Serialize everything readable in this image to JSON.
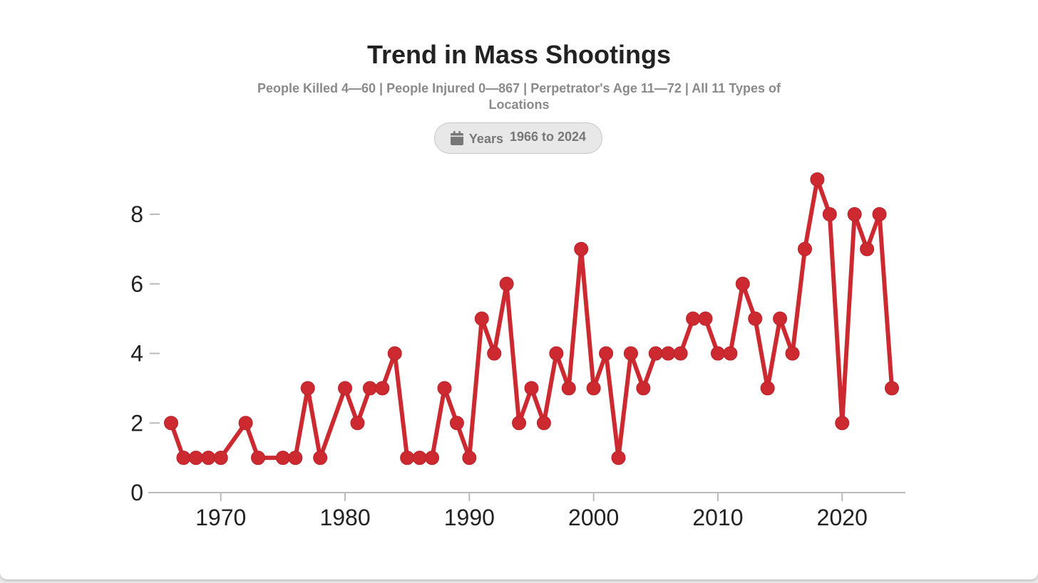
{
  "header": {
    "title": "Trend in Mass Shootings",
    "subtitle": "People Killed 4—60 | People Injured 0—867 | Perpetrator's Age 11—72 | All 11 Types of Locations"
  },
  "filter": {
    "icon": "calendar-icon",
    "label": "Years",
    "value": "1966 to 2024"
  },
  "colors": {
    "series": "#cc2a30",
    "axis": "#bbbbbb",
    "text": "#222222"
  },
  "chart_data": {
    "type": "line",
    "title": "Trend in Mass Shootings",
    "xlabel": "",
    "ylabel": "",
    "xlim": [
      1964,
      2025
    ],
    "ylim": [
      0,
      9
    ],
    "xticks": [
      1970,
      1980,
      1990,
      2000,
      2010,
      2020
    ],
    "yticks": [
      0,
      2,
      4,
      6,
      8
    ],
    "grid": false,
    "series": [
      {
        "name": "Mass shootings",
        "points": [
          [
            1966,
            2
          ],
          [
            1967,
            1
          ],
          [
            1968,
            1
          ],
          [
            1969,
            1
          ],
          [
            1970,
            1
          ],
          [
            1972,
            2
          ],
          [
            1973,
            1
          ],
          [
            1975,
            1
          ],
          [
            1976,
            1
          ],
          [
            1977,
            3
          ],
          [
            1978,
            1
          ],
          [
            1980,
            3
          ],
          [
            1981,
            2
          ],
          [
            1982,
            3
          ],
          [
            1983,
            3
          ],
          [
            1984,
            4
          ],
          [
            1985,
            1
          ],
          [
            1986,
            1
          ],
          [
            1987,
            1
          ],
          [
            1988,
            3
          ],
          [
            1989,
            2
          ],
          [
            1990,
            1
          ],
          [
            1991,
            5
          ],
          [
            1992,
            4
          ],
          [
            1993,
            6
          ],
          [
            1994,
            2
          ],
          [
            1995,
            3
          ],
          [
            1996,
            2
          ],
          [
            1997,
            4
          ],
          [
            1998,
            3
          ],
          [
            1999,
            7
          ],
          [
            2000,
            3
          ],
          [
            2001,
            4
          ],
          [
            2002,
            1
          ],
          [
            2003,
            4
          ],
          [
            2004,
            3
          ],
          [
            2005,
            4
          ],
          [
            2006,
            4
          ],
          [
            2007,
            4
          ],
          [
            2008,
            5
          ],
          [
            2009,
            5
          ],
          [
            2010,
            4
          ],
          [
            2011,
            4
          ],
          [
            2012,
            6
          ],
          [
            2013,
            5
          ],
          [
            2014,
            3
          ],
          [
            2015,
            5
          ],
          [
            2016,
            4
          ],
          [
            2017,
            7
          ],
          [
            2018,
            9
          ],
          [
            2019,
            8
          ],
          [
            2020,
            2
          ],
          [
            2021,
            8
          ],
          [
            2022,
            7
          ],
          [
            2023,
            8
          ],
          [
            2024,
            3
          ]
        ]
      }
    ]
  }
}
